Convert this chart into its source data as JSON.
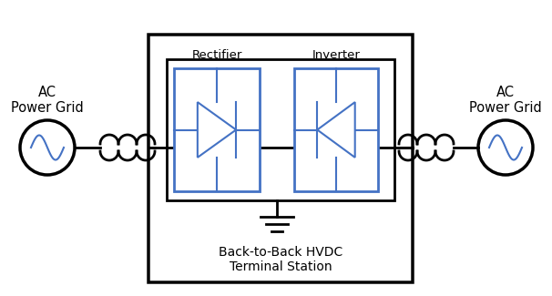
{
  "bg_color": "#ffffff",
  "line_color": "#000000",
  "blue_color": "#4472C4",
  "watermark_color": "#D0D8EA",
  "fig_width": 6.06,
  "fig_height": 3.25,
  "dpi": 100,
  "ac_left_label": "AC\nPower Grid",
  "ac_right_label": "AC\nPower Grid",
  "rectifier_label": "Rectifier",
  "inverter_label": "Inverter",
  "station_label": "Back-to-Back HVDC\nTerminal Station"
}
